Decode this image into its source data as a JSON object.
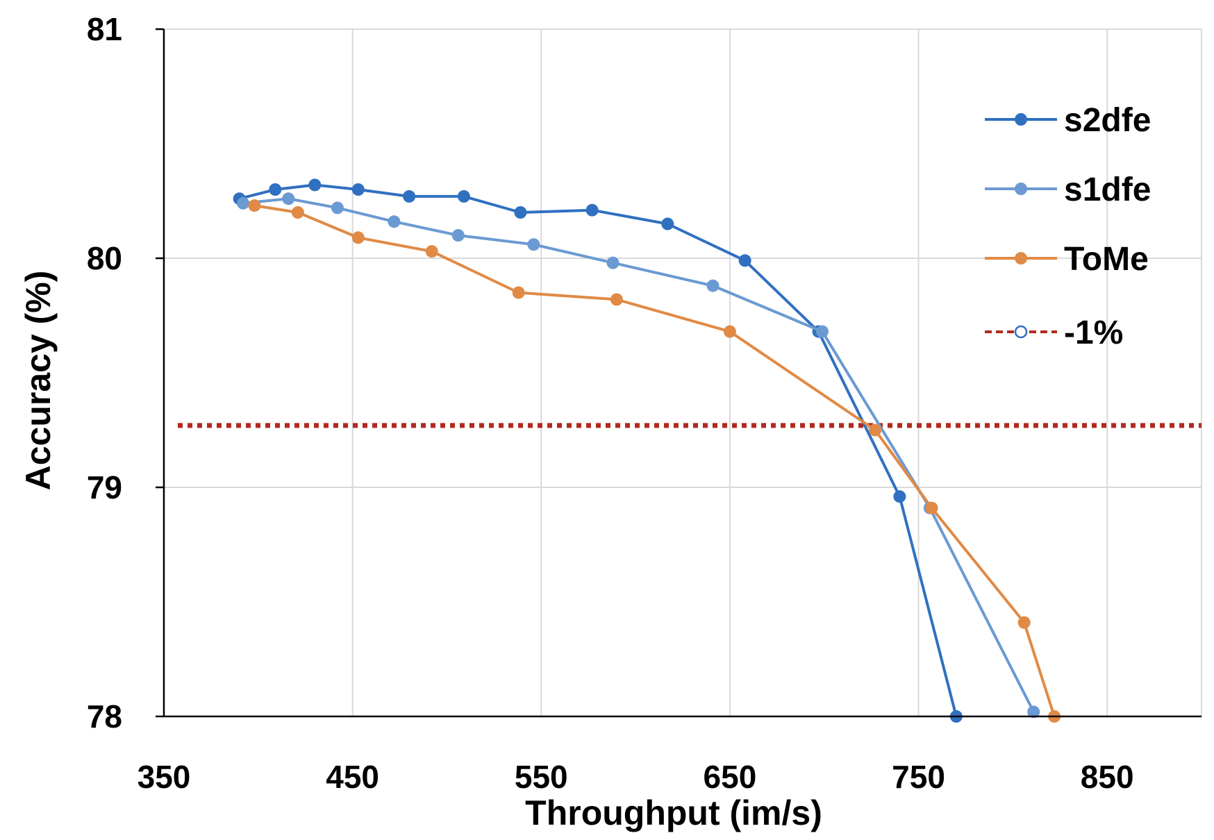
{
  "chart_data": {
    "type": "line",
    "title": "",
    "xlabel": "Throughput (im/s)",
    "ylabel": "Accuracy (%)",
    "xlim": [
      350,
      900
    ],
    "ylim": [
      78,
      81
    ],
    "xticks": [
      350,
      450,
      550,
      650,
      750,
      850
    ],
    "yticks": [
      78,
      79,
      80,
      81
    ],
    "xtick_labels": [
      "350",
      "450",
      "550",
      "650",
      "750",
      "850"
    ],
    "ytick_labels": [
      "78",
      "79",
      "80",
      "81"
    ],
    "grid": true,
    "legend_position": "top-right",
    "series": [
      {
        "name": "s2dfe",
        "color": "#3070C0",
        "points": [
          [
            390,
            80.26
          ],
          [
            409,
            80.3
          ],
          [
            430,
            80.32
          ],
          [
            453,
            80.3
          ],
          [
            480,
            80.27
          ],
          [
            509,
            80.27
          ],
          [
            539,
            80.2
          ],
          [
            577,
            80.21
          ],
          [
            617,
            80.15
          ],
          [
            658,
            79.99
          ],
          [
            697,
            79.68
          ],
          [
            740,
            78.96
          ],
          [
            770,
            78.0
          ]
        ]
      },
      {
        "name": "s1dfe",
        "color": "#6A9AD2",
        "points": [
          [
            392,
            80.24
          ],
          [
            416,
            80.26
          ],
          [
            442,
            80.22
          ],
          [
            472,
            80.16
          ],
          [
            506,
            80.1
          ],
          [
            546,
            80.06
          ],
          [
            588,
            79.98
          ],
          [
            641,
            79.88
          ],
          [
            699,
            79.68
          ],
          [
            756,
            78.91
          ],
          [
            811,
            78.02
          ]
        ]
      },
      {
        "name": "ToMe",
        "color": "#E08A45",
        "points": [
          [
            398,
            80.23
          ],
          [
            421,
            80.2
          ],
          [
            453,
            80.09
          ],
          [
            492,
            80.03
          ],
          [
            538,
            79.85
          ],
          [
            590,
            79.82
          ],
          [
            650,
            79.68
          ],
          [
            727,
            79.25
          ],
          [
            757,
            78.91
          ],
          [
            806,
            78.41
          ],
          [
            822,
            78.0
          ]
        ]
      }
    ],
    "reference_line": {
      "name": "-1%",
      "y": 79.27,
      "color": "#B02A1E",
      "style": "dotted"
    }
  }
}
